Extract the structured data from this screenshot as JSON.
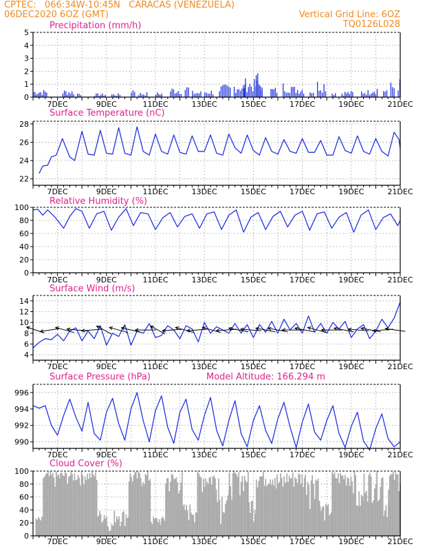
{
  "header": {
    "line1_left": "CPTEC:   066:34W-10:45N   CARACAS (VENEZUELA)",
    "line2_left": "06DEC2020 6OZ (GMT)",
    "line2_right": "Vertical Grid Line: 6OZ",
    "line3_right": "TQ0126L028"
  },
  "model_altitude": "Model Altitude: 166.294 m",
  "colors": {
    "header": "#f08a1c",
    "title": "#e0208c",
    "series": "#2233dd",
    "cloud": "#aaaaaa"
  },
  "chart_data": [
    {
      "type": "bar",
      "title": "Precipitation (mm/h)",
      "x_tick_labels": [
        "7DEC",
        "9DEC",
        "11DEC",
        "13DEC",
        "15DEC",
        "17DEC",
        "19DEC",
        "21DEC"
      ],
      "ylim": [
        0,
        5
      ],
      "yticks": [
        0,
        1,
        2,
        3,
        4,
        5
      ],
      "grid": true,
      "bursts": [
        {
          "day": 6.0,
          "len": 0.6,
          "max": 0.6
        },
        {
          "day": 7.2,
          "len": 0.5,
          "max": 0.6
        },
        {
          "day": 7.8,
          "len": 0.2,
          "max": 0.4
        },
        {
          "day": 8.5,
          "len": 0.5,
          "max": 0.3
        },
        {
          "day": 9.2,
          "len": 0.4,
          "max": 0.3
        },
        {
          "day": 10.0,
          "len": 0.2,
          "max": 0.8
        },
        {
          "day": 10.3,
          "len": 0.4,
          "max": 0.4
        },
        {
          "day": 11.0,
          "len": 0.3,
          "max": 0.4
        },
        {
          "day": 11.6,
          "len": 0.5,
          "max": 0.8
        },
        {
          "day": 12.2,
          "len": 0.2,
          "max": 1.0
        },
        {
          "day": 12.5,
          "len": 0.4,
          "max": 0.5
        },
        {
          "day": 13.0,
          "len": 0.4,
          "max": 0.6
        },
        {
          "day": 13.6,
          "len": 0.5,
          "max": 1.0
        },
        {
          "day": 14.2,
          "len": 0.5,
          "max": 1.2
        },
        {
          "day": 14.6,
          "len": 0.3,
          "max": 1.5
        },
        {
          "day": 14.9,
          "len": 0.5,
          "max": 1.4
        },
        {
          "day": 15.1,
          "len": 0.3,
          "max": 2.0
        },
        {
          "day": 15.7,
          "len": 0.3,
          "max": 0.8
        },
        {
          "day": 16.2,
          "len": 0.4,
          "max": 1.2
        },
        {
          "day": 16.6,
          "len": 0.5,
          "max": 0.9
        },
        {
          "day": 17.3,
          "len": 0.2,
          "max": 0.7
        },
        {
          "day": 17.6,
          "len": 0.4,
          "max": 1.4
        },
        {
          "day": 18.2,
          "len": 0.2,
          "max": 0.5
        },
        {
          "day": 18.6,
          "len": 0.5,
          "max": 0.5
        },
        {
          "day": 19.4,
          "len": 0.4,
          "max": 0.6
        },
        {
          "day": 19.8,
          "len": 0.3,
          "max": 0.9
        },
        {
          "day": 20.3,
          "len": 0.2,
          "max": 0.8
        },
        {
          "day": 20.6,
          "len": 0.2,
          "max": 1.2
        },
        {
          "day": 20.9,
          "len": 0.2,
          "max": 1.5
        }
      ]
    },
    {
      "type": "line",
      "title": "Surface Temperature (nC)",
      "x_tick_labels": [
        "7DEC",
        "9DEC",
        "11DEC",
        "13DEC",
        "15DEC",
        "17DEC",
        "19DEC",
        "21DEC"
      ],
      "ylim": [
        21.3,
        28.3
      ],
      "yticks": [
        22,
        24,
        26,
        28
      ],
      "grid": true,
      "x": [
        6.25,
        6.4,
        6.6,
        6.75,
        6.95,
        7.2,
        7.5,
        7.7,
        8.0,
        8.25,
        8.5,
        8.75,
        9.0,
        9.25,
        9.5,
        9.75,
        10.0,
        10.25,
        10.5,
        10.75,
        11.0,
        11.25,
        11.5,
        11.75,
        12.0,
        12.25,
        12.5,
        12.75,
        13.0,
        13.25,
        13.5,
        13.75,
        14.0,
        14.25,
        14.5,
        14.75,
        15.0,
        15.25,
        15.5,
        15.75,
        16.0,
        16.25,
        16.5,
        16.75,
        17.0,
        17.25,
        17.5,
        17.75,
        18.0,
        18.25,
        18.5,
        18.75,
        19.0,
        19.25,
        19.5,
        19.75,
        20.0,
        20.25,
        20.5,
        20.75,
        20.95,
        21.0
      ],
      "y": [
        22.6,
        23.4,
        23.5,
        24.4,
        24.6,
        26.4,
        24.4,
        24.0,
        27.2,
        24.7,
        24.6,
        27.3,
        24.8,
        24.7,
        27.6,
        24.8,
        24.6,
        27.7,
        25.0,
        24.6,
        26.9,
        25.0,
        24.7,
        26.8,
        24.9,
        24.7,
        26.7,
        25.0,
        25.0,
        26.8,
        24.8,
        24.6,
        26.9,
        25.4,
        24.8,
        26.8,
        25.1,
        24.6,
        26.5,
        25.0,
        24.7,
        26.3,
        25.0,
        24.8,
        26.4,
        24.9,
        24.9,
        26.2,
        24.6,
        24.6,
        26.6,
        25.1,
        24.8,
        26.7,
        25.0,
        24.7,
        26.4,
        25.0,
        24.5,
        27.1,
        26.3,
        25.3
      ]
    },
    {
      "type": "line",
      "title": "Relative Humidity (%)",
      "x_tick_labels": [
        "7DEC",
        "9DEC",
        "11DEC",
        "13DEC",
        "15DEC",
        "17DEC",
        "19DEC",
        "21DEC"
      ],
      "ylim": [
        0,
        100
      ],
      "yticks": [
        0,
        20,
        40,
        60,
        80,
        100
      ],
      "grid": true,
      "x": [
        6.0,
        6.2,
        6.4,
        6.6,
        6.9,
        7.25,
        7.5,
        7.75,
        8.0,
        8.3,
        8.6,
        8.9,
        9.2,
        9.5,
        9.8,
        10.1,
        10.4,
        10.7,
        11.0,
        11.3,
        11.6,
        11.9,
        12.2,
        12.5,
        12.8,
        13.1,
        13.4,
        13.7,
        14.0,
        14.3,
        14.6,
        14.9,
        15.2,
        15.5,
        15.8,
        16.1,
        16.4,
        16.7,
        17.0,
        17.3,
        17.6,
        17.9,
        18.2,
        18.5,
        18.8,
        19.1,
        19.4,
        19.7,
        20.0,
        20.3,
        20.6,
        20.9,
        21.0
      ],
      "y": [
        96,
        97,
        88,
        96,
        85,
        68,
        86,
        98,
        94,
        68,
        90,
        94,
        65,
        85,
        98,
        72,
        92,
        90,
        66,
        84,
        92,
        70,
        86,
        90,
        68,
        90,
        93,
        66,
        88,
        96,
        62,
        85,
        92,
        66,
        86,
        94,
        70,
        88,
        94,
        65,
        90,
        93,
        68,
        85,
        92,
        62,
        88,
        96,
        66,
        84,
        90,
        72,
        80
      ]
    },
    {
      "type": "line",
      "title": "Surface Wind (m/s)",
      "x_tick_labels": [
        "7DEC",
        "9DEC",
        "11DEC",
        "13DEC",
        "15DEC",
        "17DEC",
        "19DEC",
        "21DEC"
      ],
      "ylim": [
        3,
        15
      ],
      "yticks": [
        4,
        6,
        8,
        10,
        12,
        14
      ],
      "grid": true,
      "x": [
        6.0,
        6.25,
        6.5,
        6.75,
        7.0,
        7.25,
        7.5,
        7.75,
        8.0,
        8.25,
        8.5,
        8.75,
        9.0,
        9.25,
        9.5,
        9.75,
        10.0,
        10.25,
        10.5,
        10.75,
        11.0,
        11.25,
        11.5,
        11.75,
        12.0,
        12.25,
        12.5,
        12.75,
        13.0,
        13.25,
        13.5,
        13.75,
        14.0,
        14.25,
        14.5,
        14.75,
        15.0,
        15.25,
        15.5,
        15.75,
        16.0,
        16.25,
        16.5,
        16.75,
        17.0,
        17.25,
        17.5,
        17.75,
        18.0,
        18.25,
        18.5,
        18.75,
        19.0,
        19.25,
        19.5,
        19.75,
        20.0,
        20.25,
        20.5,
        20.75,
        21.0
      ],
      "y": [
        5.3,
        6.3,
        7.0,
        6.8,
        7.8,
        6.6,
        8.4,
        9.0,
        6.6,
        8.4,
        7.0,
        9.4,
        5.8,
        8.0,
        7.4,
        9.6,
        5.8,
        8.4,
        8.0,
        9.8,
        7.2,
        7.6,
        9.4,
        8.6,
        7.0,
        9.4,
        8.8,
        6.4,
        10.0,
        8.0,
        9.2,
        8.6,
        8.0,
        9.8,
        8.0,
        9.6,
        7.2,
        9.6,
        8.2,
        10.2,
        8.0,
        10.6,
        8.6,
        9.8,
        8.0,
        11.2,
        8.2,
        9.8,
        8.0,
        10.0,
        8.8,
        10.2,
        7.2,
        8.8,
        9.6,
        7.0,
        8.4,
        10.6,
        9.0,
        10.8,
        13.8
      ],
      "barbs": [
        {
          "day": 6.1,
          "u": -5,
          "v": 3
        },
        {
          "day": 6.7,
          "u": -7,
          "v": -2
        },
        {
          "day": 7.3,
          "u": -6,
          "v": 3
        },
        {
          "day": 7.8,
          "u": -6,
          "v": 1
        },
        {
          "day": 8.4,
          "u": -7,
          "v": -1
        },
        {
          "day": 8.9,
          "u": -5,
          "v": 5
        },
        {
          "day": 9.5,
          "u": -6,
          "v": 3
        },
        {
          "day": 10.0,
          "u": -7,
          "v": 3
        },
        {
          "day": 10.6,
          "u": -7,
          "v": 0
        },
        {
          "day": 11.1,
          "u": -5,
          "v": 5
        },
        {
          "day": 11.7,
          "u": -7,
          "v": -1
        },
        {
          "day": 12.2,
          "u": -6,
          "v": 3
        },
        {
          "day": 12.7,
          "u": -7,
          "v": -1
        },
        {
          "day": 13.3,
          "u": -6,
          "v": 3
        },
        {
          "day": 13.9,
          "u": -7,
          "v": -1
        },
        {
          "day": 14.4,
          "u": -6,
          "v": 2
        },
        {
          "day": 14.9,
          "u": -7,
          "v": 1
        },
        {
          "day": 15.5,
          "u": -6,
          "v": 2
        },
        {
          "day": 16.0,
          "u": -6,
          "v": 2
        },
        {
          "day": 16.6,
          "u": -7,
          "v": 0
        },
        {
          "day": 17.1,
          "u": -6,
          "v": 2
        },
        {
          "day": 17.6,
          "u": -6,
          "v": 3
        },
        {
          "day": 18.2,
          "u": -7,
          "v": 0
        },
        {
          "day": 18.7,
          "u": -6,
          "v": 2
        },
        {
          "day": 19.3,
          "u": -7,
          "v": 1
        },
        {
          "day": 19.8,
          "u": -6,
          "v": 2
        },
        {
          "day": 20.3,
          "u": -7,
          "v": -1
        },
        {
          "day": 20.8,
          "u": -8,
          "v": 2
        }
      ]
    },
    {
      "type": "line",
      "title": "Surface Pressure (hPa)",
      "x_tick_labels": [
        "7DEC",
        "9DEC",
        "11DEC",
        "13DEC",
        "15DEC",
        "17DEC",
        "19DEC",
        "21DEC"
      ],
      "ylim": [
        989.2,
        997
      ],
      "yticks": [
        990,
        992,
        994,
        996
      ],
      "grid": true,
      "x": [
        6.0,
        6.25,
        6.5,
        6.75,
        7.0,
        7.25,
        7.5,
        7.75,
        8.0,
        8.25,
        8.5,
        8.75,
        9.0,
        9.25,
        9.5,
        9.75,
        10.0,
        10.25,
        10.5,
        10.75,
        11.0,
        11.25,
        11.5,
        11.75,
        12.0,
        12.25,
        12.5,
        12.75,
        13.0,
        13.25,
        13.5,
        13.75,
        14.0,
        14.25,
        14.5,
        14.75,
        15.0,
        15.25,
        15.5,
        15.75,
        16.0,
        16.25,
        16.5,
        16.75,
        17.0,
        17.25,
        17.5,
        17.75,
        18.0,
        18.25,
        18.5,
        18.75,
        19.0,
        19.25,
        19.5,
        19.75,
        20.0,
        20.25,
        20.5,
        20.75,
        21.0
      ],
      "y": [
        994.4,
        994.1,
        994.4,
        992.0,
        990.8,
        993.2,
        995.2,
        993.0,
        991.3,
        994.8,
        991.0,
        990.2,
        993.6,
        995.3,
        992.2,
        990.2,
        994.0,
        996.0,
        992.6,
        990.0,
        993.8,
        995.6,
        991.8,
        989.8,
        993.6,
        995.2,
        991.5,
        990.2,
        993.2,
        995.4,
        991.4,
        989.5,
        992.6,
        995.0,
        991.0,
        989.4,
        992.6,
        994.4,
        991.4,
        989.8,
        992.8,
        994.8,
        991.8,
        989.3,
        992.4,
        994.6,
        991.2,
        990.2,
        992.6,
        994.4,
        991.0,
        989.3,
        991.9,
        993.6,
        990.1,
        989.0,
        991.6,
        993.4,
        990.4,
        989.4,
        990.0
      ]
    },
    {
      "type": "area",
      "title": "Cloud Cover (%)",
      "x_tick_labels": [
        "7DEC",
        "9DEC",
        "11DEC",
        "13DEC",
        "15DEC",
        "17DEC",
        "19DEC",
        "21DEC"
      ],
      "ylim": [
        0,
        100
      ],
      "yticks": [
        0,
        20,
        40,
        60,
        80,
        100
      ],
      "grid": true,
      "segments": [
        {
          "day0": 6.1,
          "day1": 6.4,
          "hi": 30,
          "lo": 5
        },
        {
          "day0": 6.4,
          "day1": 7.1,
          "hi": 100,
          "lo": 60
        },
        {
          "day0": 7.1,
          "day1": 8.6,
          "hi": 100,
          "lo": 70
        },
        {
          "day0": 8.6,
          "day1": 9.0,
          "hi": 40,
          "lo": 5
        },
        {
          "day0": 9.0,
          "day1": 9.3,
          "hi": 20,
          "lo": 2
        },
        {
          "day0": 9.3,
          "day1": 9.9,
          "hi": 40,
          "lo": 5
        },
        {
          "day0": 9.9,
          "day1": 10.8,
          "hi": 100,
          "lo": 60
        },
        {
          "day0": 10.8,
          "day1": 11.4,
          "hi": 30,
          "lo": 5
        },
        {
          "day0": 11.4,
          "day1": 12.1,
          "hi": 100,
          "lo": 40
        },
        {
          "day0": 12.1,
          "day1": 12.7,
          "hi": 50,
          "lo": 5
        },
        {
          "day0": 12.7,
          "day1": 13.6,
          "hi": 100,
          "lo": 50
        },
        {
          "day0": 13.6,
          "day1": 14.0,
          "hi": 70,
          "lo": 10
        },
        {
          "day0": 14.0,
          "day1": 14.8,
          "hi": 100,
          "lo": 50
        },
        {
          "day0": 14.8,
          "day1": 15.1,
          "hi": 60,
          "lo": 10
        },
        {
          "day0": 15.1,
          "day1": 15.9,
          "hi": 100,
          "lo": 60
        },
        {
          "day0": 15.9,
          "day1": 16.3,
          "hi": 100,
          "lo": 20
        },
        {
          "day0": 16.3,
          "day1": 17.1,
          "hi": 100,
          "lo": 55
        },
        {
          "day0": 17.1,
          "day1": 17.7,
          "hi": 100,
          "lo": 40
        },
        {
          "day0": 17.7,
          "day1": 18.2,
          "hi": 50,
          "lo": 5
        },
        {
          "day0": 18.2,
          "day1": 19.2,
          "hi": 100,
          "lo": 60
        },
        {
          "day0": 19.2,
          "day1": 19.5,
          "hi": 70,
          "lo": 10
        },
        {
          "day0": 19.5,
          "day1": 20.3,
          "hi": 100,
          "lo": 40
        },
        {
          "day0": 20.3,
          "day1": 20.5,
          "hi": 60,
          "lo": 5
        },
        {
          "day0": 20.5,
          "day1": 21.0,
          "hi": 100,
          "lo": 60
        }
      ]
    }
  ]
}
